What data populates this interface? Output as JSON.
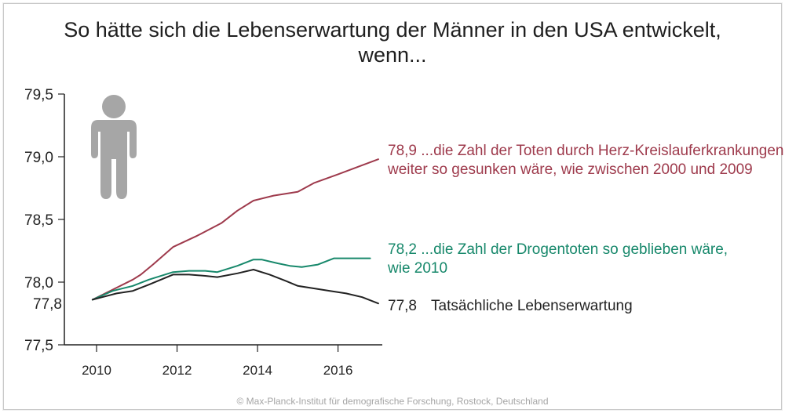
{
  "title_line1": "So hätte sich die Lebenserwartung der Männer in den USA entwickelt,",
  "title_line2": "wenn...",
  "footer": "© Max-Planck-Institut für demografische Forschung, Rostock, Deutschland",
  "start_label": "77,8",
  "icon": "person-icon",
  "colors": {
    "heart": "#9e3a4c",
    "drug": "#17886b",
    "actual": "#222222",
    "axis": "#222222",
    "icon": "#a6a6a6"
  },
  "chart_data": {
    "type": "line",
    "title": "So hätte sich die Lebenserwartung der Männer in den USA entwickelt, wenn...",
    "xlabel": "",
    "ylabel": "",
    "xlim": [
      2009.2,
      2017.1
    ],
    "ylim": [
      77.5,
      79.5
    ],
    "x_ticks": [
      2010,
      2012,
      2014,
      2016
    ],
    "x_tick_labels": [
      "2010",
      "2012",
      "2014",
      "2016"
    ],
    "y_ticks": [
      77.5,
      78.0,
      78.5,
      79.0,
      79.5
    ],
    "y_tick_labels": [
      "77,5",
      "78,0",
      "78,5",
      "79,0",
      "79,5"
    ],
    "grid": false,
    "series": [
      {
        "key": "heart",
        "value_label": "78,9",
        "label_lines": [
          "...die Zahl der Toten durch Herz-Kreislauferkrankungen",
          "weiter so gesunken wäre, wie zwischen 2000 und 2009"
        ],
        "x": [
          2009.9,
          2010.4,
          2010.9,
          2011.1,
          2011.4,
          2011.9,
          2012.5,
          2013.1,
          2013.5,
          2013.9,
          2014.4,
          2015.0,
          2015.4,
          2016.0,
          2016.5,
          2017.0
        ],
        "y": [
          77.86,
          77.94,
          78.02,
          78.06,
          78.14,
          78.28,
          78.37,
          78.47,
          78.57,
          78.65,
          78.69,
          78.72,
          78.79,
          78.86,
          78.92,
          78.98
        ]
      },
      {
        "key": "drug",
        "value_label": "78,2",
        "label_lines": [
          "...die Zahl der Drogentoten so geblieben wäre,",
          "wie 2010"
        ],
        "x": [
          2009.9,
          2010.4,
          2010.9,
          2011.3,
          2011.9,
          2012.3,
          2012.7,
          2013.0,
          2013.5,
          2013.9,
          2014.1,
          2014.5,
          2014.8,
          2015.1,
          2015.5,
          2015.9,
          2016.3,
          2016.8
        ],
        "y": [
          77.86,
          77.93,
          77.97,
          78.02,
          78.08,
          78.09,
          78.09,
          78.08,
          78.13,
          78.18,
          78.18,
          78.15,
          78.13,
          78.12,
          78.14,
          78.19,
          78.19,
          78.19
        ]
      },
      {
        "key": "actual",
        "value_label": "77,8",
        "label_lines": [
          "Tatsächliche Lebenserwartung"
        ],
        "x": [
          2009.9,
          2010.5,
          2010.9,
          2011.3,
          2011.9,
          2012.3,
          2012.7,
          2013.0,
          2013.5,
          2013.9,
          2014.3,
          2014.7,
          2015.0,
          2015.4,
          2015.8,
          2016.2,
          2016.6,
          2017.0
        ],
        "y": [
          77.86,
          77.91,
          77.93,
          77.98,
          78.06,
          78.06,
          78.05,
          78.04,
          78.07,
          78.1,
          78.06,
          78.01,
          77.97,
          77.95,
          77.93,
          77.91,
          77.88,
          77.83
        ]
      }
    ]
  }
}
